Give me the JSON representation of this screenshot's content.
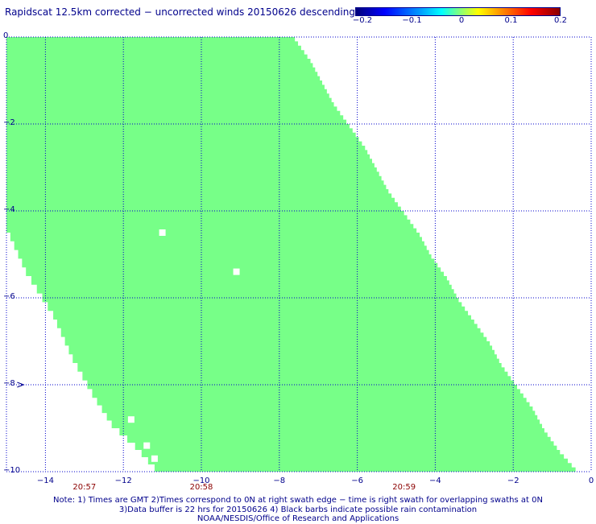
{
  "title": "Rapidscat 12.5km corrected − uncorrected winds 20150626 descending",
  "colorbar": {
    "tick_labels": [
      "−0.2",
      "−0.1",
      "0",
      "0.1",
      "0.2"
    ],
    "range": [
      -0.2,
      0.2
    ]
  },
  "swath_color": "#77ff88",
  "grid_color": "#0000cc",
  "chart_data": {
    "type": "heatmap",
    "xlim": [
      -15,
      0
    ],
    "ylim": [
      -10,
      0
    ],
    "x_tick_labels": [
      "−14",
      "−12",
      "−10",
      "−8",
      "−6",
      "−4",
      "−2",
      "0"
    ],
    "y_tick_labels": [
      "0",
      "−2",
      "−4",
      "−6",
      "−8",
      "−10"
    ],
    "time_labels": [
      {
        "label": "20:57",
        "lon": -13.0
      },
      {
        "label": "20:58",
        "lon": -10.0
      },
      {
        "label": "20:59",
        "lon": -4.8
      }
    ],
    "swath_right_edge": [
      [
        -7.6,
        0.0
      ],
      [
        -7.2,
        -0.5
      ],
      [
        -6.9,
        -1.0
      ],
      [
        -6.6,
        -1.5
      ],
      [
        -6.2,
        -2.0
      ],
      [
        -5.8,
        -2.5
      ],
      [
        -5.5,
        -3.0
      ],
      [
        -5.2,
        -3.5
      ],
      [
        -4.8,
        -4.0
      ],
      [
        -4.4,
        -4.5
      ],
      [
        -4.1,
        -5.0
      ],
      [
        -3.7,
        -5.5
      ],
      [
        -3.4,
        -6.0
      ],
      [
        -3.0,
        -6.5
      ],
      [
        -2.6,
        -7.0
      ],
      [
        -2.3,
        -7.5
      ],
      [
        -1.9,
        -8.0
      ],
      [
        -1.5,
        -8.5
      ],
      [
        -1.2,
        -9.0
      ],
      [
        -0.8,
        -9.5
      ],
      [
        -0.3,
        -10.0
      ]
    ],
    "swath_left_edge": [
      [
        -15.0,
        0.0
      ],
      [
        -15.0,
        -4.5
      ],
      [
        -14.5,
        -5.5
      ],
      [
        -13.8,
        -6.5
      ],
      [
        -13.3,
        -7.5
      ],
      [
        -12.8,
        -8.3
      ],
      [
        -12.3,
        -9.0
      ],
      [
        -11.7,
        -9.5
      ],
      [
        -11.2,
        -10.0
      ]
    ],
    "data_gaps": [
      [
        -11.0,
        -4.5
      ],
      [
        -9.1,
        -5.4
      ],
      [
        -11.8,
        -8.8
      ],
      [
        -11.4,
        -9.4
      ],
      [
        -11.2,
        -9.7
      ]
    ],
    "rain_flags": [
      [
        -14.6,
        -8.0
      ]
    ]
  },
  "notes": [
    "Note: 1) Times are GMT 2)Times correspond to 0N at right swath edge − time is right swath for overlapping swaths at 0N",
    "3)Data buffer is 22 hrs for 20150626 4) Black barbs indicate possible rain contamination",
    "NOAA/NESDIS/Office of Research and Applications"
  ]
}
